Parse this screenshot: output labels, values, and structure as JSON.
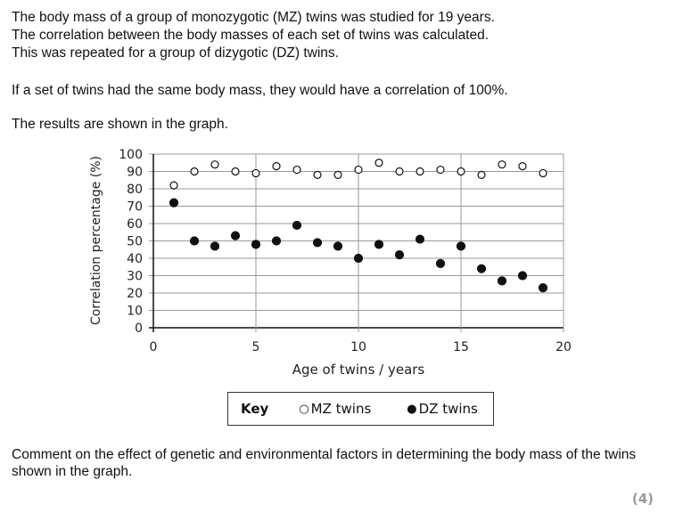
{
  "intro": [
    "The body mass of a group of monozygotic (MZ) twins was studied for 19 years.",
    "The correlation between the body masses of each set of twins was calculated.",
    "This was repeated for a group of dizygotic (DZ) twins."
  ],
  "statement": "If a set of twins had the same body mass, they would have a correlation of 100%.",
  "results_text": "The results are shown in the graph.",
  "question": "Comment on the effect of genetic and environmental factors in determining the body mass of the twins shown in the graph.",
  "marks": "(4)",
  "key": {
    "title": "Key",
    "mz": "MZ twins",
    "dz": "DZ twins"
  },
  "chart_data": {
    "type": "scatter",
    "xlabel": "Age of twins / years",
    "ylabel": "Correlation percentage (%)",
    "xlim": [
      0,
      20
    ],
    "ylim": [
      0,
      100
    ],
    "xticks": [
      "0",
      "5",
      "10",
      "15",
      "20"
    ],
    "yticks": [
      "0",
      "10",
      "20",
      "30",
      "40",
      "50",
      "60",
      "70",
      "80",
      "90",
      "100"
    ],
    "grid": true,
    "x": [
      1,
      2,
      3,
      4,
      5,
      6,
      7,
      8,
      9,
      10,
      11,
      12,
      13,
      14,
      15,
      16,
      17,
      18,
      19
    ],
    "series": [
      {
        "name": "MZ twins",
        "marker": "open-circle",
        "values": [
          82,
          90,
          94,
          90,
          89,
          93,
          91,
          88,
          88,
          91,
          95,
          90,
          90,
          91,
          90,
          88,
          94,
          93,
          89
        ]
      },
      {
        "name": "DZ twins",
        "marker": "filled-circle",
        "values": [
          72,
          50,
          47,
          53,
          48,
          50,
          59,
          49,
          47,
          40,
          48,
          42,
          51,
          37,
          47,
          34,
          27,
          30,
          23
        ]
      }
    ]
  }
}
